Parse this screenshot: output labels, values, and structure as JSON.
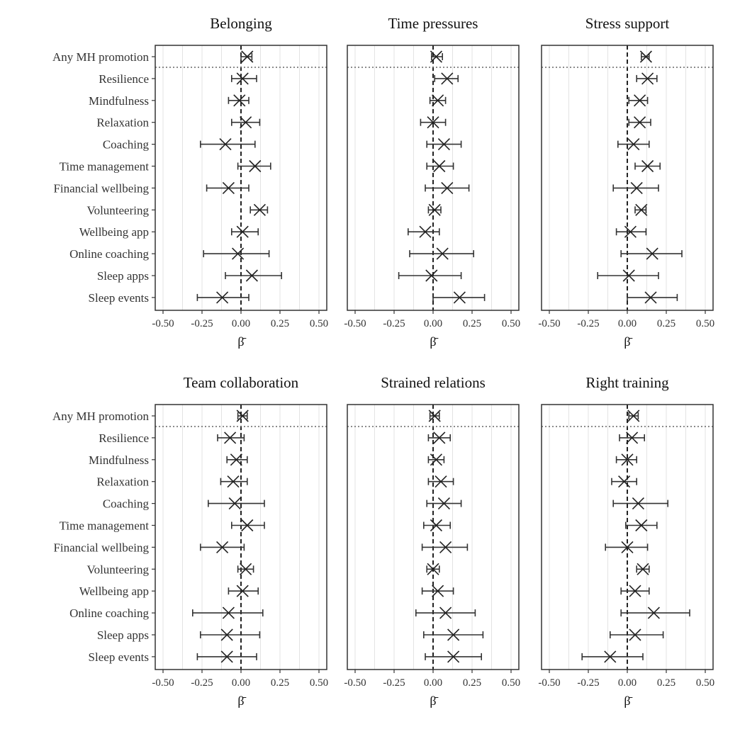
{
  "chart_data": {
    "type": "forest",
    "rows": [
      "Any MH promotion",
      "Resilience",
      "Mindfulness",
      "Relaxation",
      "Coaching",
      "Time management",
      "Financial wellbeing",
      "Volunteering",
      "Wellbeing app",
      "Online coaching",
      "Sleep apps",
      "Sleep events"
    ],
    "xlabel": "β̄",
    "xlim": [
      -0.55,
      0.55
    ],
    "xticks": [
      "-0.50",
      "-0.25",
      "0.00",
      "0.25",
      "0.50"
    ],
    "xtick_values": [
      -0.5,
      -0.25,
      0,
      0.25,
      0.5
    ],
    "reference_line": 0,
    "grid": true,
    "marker": "x",
    "panels": [
      {
        "title": "Belonging",
        "est": [
          0.04,
          0.01,
          -0.01,
          0.03,
          -0.1,
          0.09,
          -0.08,
          0.12,
          0.01,
          -0.02,
          0.07,
          -0.12
        ],
        "low": [
          0.0,
          -0.06,
          -0.08,
          -0.06,
          -0.26,
          -0.02,
          -0.22,
          0.06,
          -0.06,
          -0.24,
          -0.1,
          -0.28
        ],
        "high": [
          0.07,
          0.1,
          0.05,
          0.12,
          0.09,
          0.19,
          0.05,
          0.17,
          0.11,
          0.18,
          0.26,
          0.05
        ]
      },
      {
        "title": "Time pressures",
        "est": [
          0.02,
          0.09,
          0.03,
          0.0,
          0.07,
          0.04,
          0.09,
          0.01,
          -0.05,
          0.06,
          -0.01,
          0.17
        ],
        "low": [
          -0.01,
          0.01,
          -0.02,
          -0.08,
          -0.04,
          -0.04,
          -0.05,
          -0.03,
          -0.16,
          -0.15,
          -0.22,
          0.0
        ],
        "high": [
          0.06,
          0.16,
          0.08,
          0.08,
          0.18,
          0.13,
          0.23,
          0.05,
          0.04,
          0.26,
          0.18,
          0.33
        ]
      },
      {
        "title": "Stress support",
        "est": [
          0.12,
          0.13,
          0.08,
          0.08,
          0.04,
          0.13,
          0.06,
          0.09,
          0.02,
          0.16,
          0.01,
          0.15
        ],
        "low": [
          0.09,
          0.06,
          0.01,
          0.01,
          -0.06,
          0.05,
          -0.09,
          0.05,
          -0.07,
          -0.04,
          -0.19,
          0.0
        ],
        "high": [
          0.14,
          0.19,
          0.13,
          0.15,
          0.14,
          0.21,
          0.2,
          0.12,
          0.12,
          0.35,
          0.2,
          0.32
        ]
      },
      {
        "title": "Team collaboration",
        "est": [
          0.01,
          -0.07,
          -0.03,
          -0.05,
          -0.04,
          0.04,
          -0.12,
          0.03,
          0.01,
          -0.08,
          -0.09,
          -0.09
        ],
        "low": [
          -0.02,
          -0.15,
          -0.09,
          -0.13,
          -0.21,
          -0.06,
          -0.26,
          -0.02,
          -0.08,
          -0.31,
          -0.26,
          -0.28
        ],
        "high": [
          0.04,
          0.02,
          0.04,
          0.04,
          0.15,
          0.15,
          0.02,
          0.08,
          0.11,
          0.14,
          0.12,
          0.1
        ]
      },
      {
        "title": "Strained relations",
        "est": [
          0.01,
          0.04,
          0.02,
          0.05,
          0.07,
          0.02,
          0.08,
          0.0,
          0.03,
          0.08,
          0.13,
          0.13
        ],
        "low": [
          -0.02,
          -0.03,
          -0.03,
          -0.03,
          -0.04,
          -0.06,
          -0.07,
          -0.04,
          -0.07,
          -0.11,
          -0.06,
          -0.05
        ],
        "high": [
          0.04,
          0.11,
          0.07,
          0.13,
          0.18,
          0.11,
          0.22,
          0.04,
          0.13,
          0.27,
          0.32,
          0.31
        ]
      },
      {
        "title": "Right training",
        "est": [
          0.04,
          0.03,
          0.0,
          -0.02,
          0.07,
          0.09,
          0.0,
          0.1,
          0.05,
          0.17,
          0.05,
          -0.11
        ],
        "low": [
          0.01,
          -0.05,
          -0.07,
          -0.1,
          -0.09,
          -0.01,
          -0.14,
          0.06,
          -0.04,
          -0.04,
          -0.11,
          -0.29
        ],
        "high": [
          0.07,
          0.11,
          0.06,
          0.06,
          0.26,
          0.19,
          0.13,
          0.14,
          0.14,
          0.4,
          0.23,
          0.1
        ]
      }
    ]
  }
}
